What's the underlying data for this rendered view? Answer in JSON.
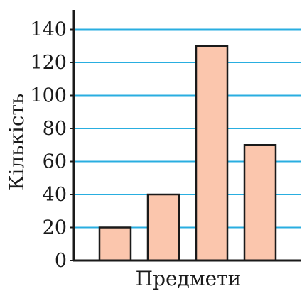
{
  "chart_data": {
    "type": "bar",
    "title": "",
    "xlabel": "Предмети",
    "ylabel": "Кількість",
    "categories": [
      "",
      "",
      "",
      ""
    ],
    "values": [
      20,
      40,
      130,
      70
    ],
    "ylim": [
      0,
      150
    ],
    "yticks": [
      0,
      20,
      40,
      60,
      80,
      100,
      120,
      140
    ],
    "grid": true,
    "legend": "none",
    "colors": {
      "bar_fill": "#fbc6ad",
      "bar_stroke": "#1a1a1a",
      "grid": "#29aee0",
      "axis": "#1a1a1a"
    }
  }
}
